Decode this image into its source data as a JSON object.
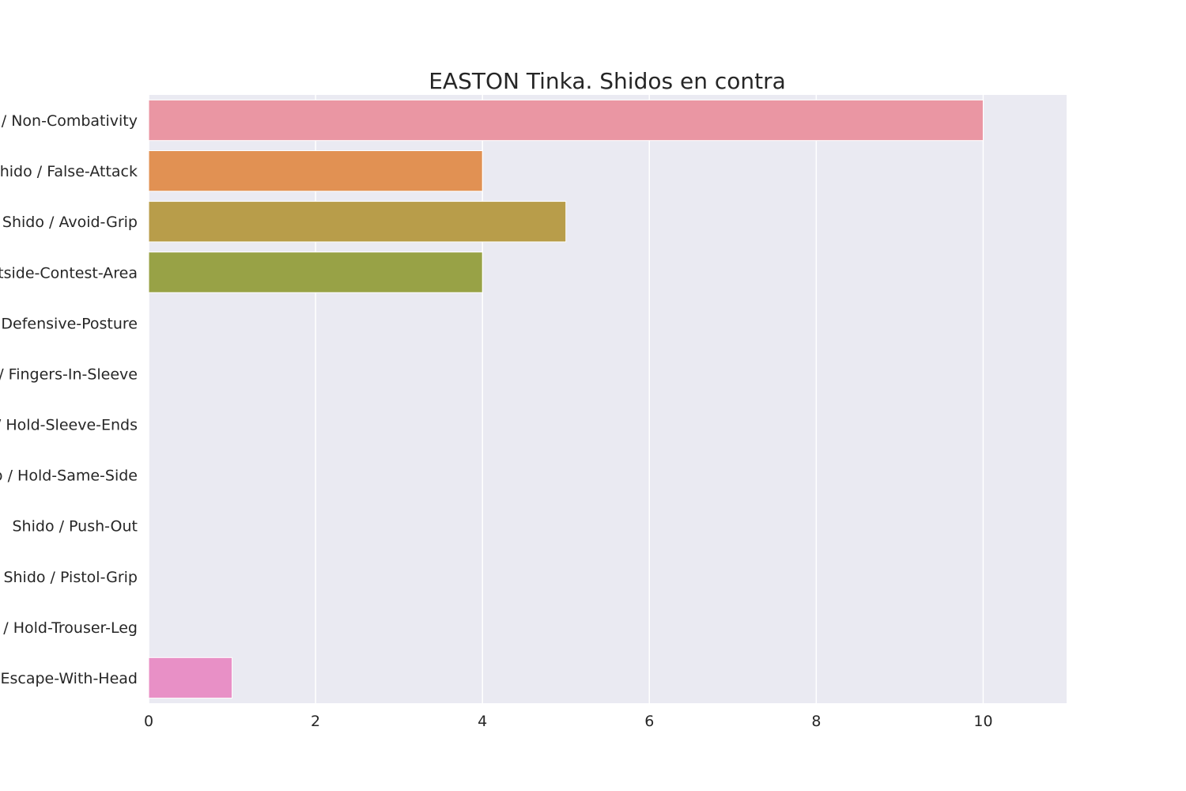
{
  "chart_data": {
    "type": "bar",
    "orientation": "horizontal",
    "title": "EASTON Tinka. Shidos en contra",
    "xlabel": "",
    "ylabel": "",
    "categories": [
      "Shido / Non-Combativity",
      "Shido / False-Attack",
      "Shido / Avoid-Grip",
      "Shido / Outside-Contest-Area",
      "Shido / Defensive-Posture",
      "Shido / Fingers-In-Sleeve",
      "Shido / Hold-Sleeve-Ends",
      "Shido / Hold-Same-Side",
      "Shido / Push-Out",
      "Shido / Pistol-Grip",
      "Shido / Hold-Trouser-Leg",
      "Shido / Escape-With-Head"
    ],
    "values": [
      10,
      4,
      5,
      4,
      0,
      0,
      0,
      0,
      0,
      0,
      0,
      1
    ],
    "xlim": [
      0,
      11
    ],
    "xticks": [
      0,
      2,
      4,
      6,
      8,
      10
    ],
    "grid": true,
    "legend": "none",
    "colors": [
      "#ea96a3",
      "#e19153",
      "#b89d4a",
      "#98a246",
      "#59ac4c",
      "#5daa86",
      "#5ea8a0",
      "#5ea7ba",
      "#66a5e1",
      "#b49cf0",
      "#de8ae8",
      "#e890c6"
    ],
    "background": "#eaeaf2",
    "grid_color": "#ffffff"
  }
}
